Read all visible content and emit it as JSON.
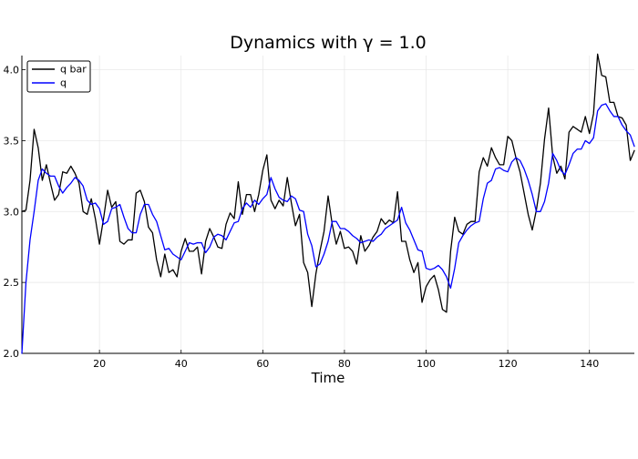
{
  "chart_data": {
    "type": "line",
    "title": "Dynamics with γ = 1.0",
    "xlabel": "Time",
    "ylabel": "",
    "xlim": [
      1,
      151
    ],
    "ylim": [
      2.0,
      4.1
    ],
    "xticks": [
      20,
      40,
      60,
      80,
      100,
      120,
      140
    ],
    "yticks": [
      2.0,
      2.5,
      3.0,
      3.5,
      4.0
    ],
    "ytick_labels": [
      "2.0",
      "2.5",
      "3.0",
      "3.5",
      "4.0"
    ],
    "grid": true,
    "legend_position": "top-left",
    "x": [
      1,
      2,
      3,
      4,
      5,
      6,
      7,
      8,
      9,
      10,
      11,
      12,
      13,
      14,
      15,
      16,
      17,
      18,
      19,
      20,
      21,
      22,
      23,
      24,
      25,
      26,
      27,
      28,
      29,
      30,
      31,
      32,
      33,
      34,
      35,
      36,
      37,
      38,
      39,
      40,
      41,
      42,
      43,
      44,
      45,
      46,
      47,
      48,
      49,
      50,
      51,
      52,
      53,
      54,
      55,
      56,
      57,
      58,
      59,
      60,
      61,
      62,
      63,
      64,
      65,
      66,
      67,
      68,
      69,
      70,
      71,
      72,
      73,
      74,
      75,
      76,
      77,
      78,
      79,
      80,
      81,
      82,
      83,
      84,
      85,
      86,
      87,
      88,
      89,
      90,
      91,
      92,
      93,
      94,
      95,
      96,
      97,
      98,
      99,
      100,
      101,
      102,
      103,
      104,
      105,
      106,
      107,
      108,
      109,
      110,
      111,
      112,
      113,
      114,
      115,
      116,
      117,
      118,
      119,
      120,
      121,
      122,
      123,
      124,
      125,
      126,
      127,
      128,
      129,
      130,
      131,
      132,
      133,
      134,
      135,
      136,
      137,
      138,
      139,
      140,
      141,
      142,
      143,
      144,
      145,
      146,
      147,
      148,
      149,
      150,
      151
    ],
    "series": [
      {
        "name": "q bar",
        "color": "#000000",
        "values": [
          3.0,
          3.01,
          3.22,
          3.58,
          3.45,
          3.22,
          3.33,
          3.2,
          3.08,
          3.12,
          3.28,
          3.27,
          3.32,
          3.27,
          3.2,
          3.0,
          2.98,
          3.09,
          2.95,
          2.77,
          2.95,
          3.15,
          3.03,
          3.07,
          2.79,
          2.77,
          2.8,
          2.8,
          3.13,
          3.15,
          3.07,
          2.89,
          2.85,
          2.66,
          2.54,
          2.7,
          2.57,
          2.59,
          2.54,
          2.72,
          2.81,
          2.72,
          2.72,
          2.75,
          2.56,
          2.79,
          2.88,
          2.82,
          2.75,
          2.74,
          2.91,
          2.99,
          2.95,
          3.21,
          2.98,
          3.12,
          3.12,
          3.0,
          3.12,
          3.29,
          3.4,
          3.08,
          3.02,
          3.08,
          3.04,
          3.24,
          3.06,
          2.9,
          2.98,
          2.64,
          2.57,
          2.33,
          2.56,
          2.72,
          2.86,
          3.11,
          2.91,
          2.77,
          2.86,
          2.74,
          2.75,
          2.72,
          2.63,
          2.83,
          2.72,
          2.76,
          2.82,
          2.86,
          2.95,
          2.91,
          2.94,
          2.92,
          3.14,
          2.79,
          2.79,
          2.66,
          2.57,
          2.64,
          2.36,
          2.47,
          2.52,
          2.55,
          2.45,
          2.31,
          2.29,
          2.72,
          2.96,
          2.86,
          2.84,
          2.91,
          2.93,
          2.93,
          3.28,
          3.38,
          3.32,
          3.45,
          3.38,
          3.33,
          3.33,
          3.53,
          3.5,
          3.38,
          3.28,
          3.13,
          2.98,
          2.87,
          3.01,
          3.2,
          3.51,
          3.73,
          3.39,
          3.27,
          3.32,
          3.23,
          3.56,
          3.6,
          3.58,
          3.56,
          3.67,
          3.55,
          3.69,
          4.11,
          3.96,
          3.95,
          3.77,
          3.77,
          3.67,
          3.66,
          3.61,
          3.36,
          3.43
        ]
      },
      {
        "name": "q",
        "color": "#0000ff",
        "values": [
          2.0,
          2.5,
          2.8,
          3.0,
          3.22,
          3.3,
          3.27,
          3.25,
          3.25,
          3.18,
          3.13,
          3.17,
          3.2,
          3.24,
          3.22,
          3.18,
          3.08,
          3.05,
          3.06,
          3.02,
          2.91,
          2.93,
          3.02,
          3.03,
          3.05,
          2.96,
          2.88,
          2.85,
          2.85,
          2.98,
          3.05,
          3.05,
          2.98,
          2.93,
          2.83,
          2.73,
          2.74,
          2.7,
          2.68,
          2.66,
          2.72,
          2.78,
          2.77,
          2.78,
          2.78,
          2.71,
          2.75,
          2.82,
          2.84,
          2.83,
          2.8,
          2.86,
          2.92,
          2.93,
          3.02,
          3.06,
          3.03,
          3.08,
          3.05,
          3.09,
          3.12,
          3.24,
          3.16,
          3.1,
          3.08,
          3.07,
          3.11,
          3.09,
          3.01,
          3.0,
          2.84,
          2.76,
          2.61,
          2.63,
          2.7,
          2.79,
          2.93,
          2.93,
          2.88,
          2.88,
          2.86,
          2.83,
          2.81,
          2.78,
          2.79,
          2.8,
          2.79,
          2.82,
          2.84,
          2.88,
          2.9,
          2.92,
          2.94,
          3.03,
          2.92,
          2.87,
          2.8,
          2.73,
          2.72,
          2.6,
          2.59,
          2.6,
          2.62,
          2.59,
          2.54,
          2.46,
          2.6,
          2.78,
          2.83,
          2.87,
          2.9,
          2.92,
          2.93,
          3.09,
          3.2,
          3.22,
          3.3,
          3.31,
          3.29,
          3.28,
          3.35,
          3.38,
          3.36,
          3.3,
          3.22,
          3.12,
          3.0,
          3.0,
          3.07,
          3.2,
          3.41,
          3.36,
          3.29,
          3.26,
          3.33,
          3.41,
          3.44,
          3.44,
          3.5,
          3.48,
          3.52,
          3.71,
          3.75,
          3.76,
          3.71,
          3.67,
          3.67,
          3.61,
          3.57,
          3.54,
          3.46
        ]
      }
    ]
  }
}
